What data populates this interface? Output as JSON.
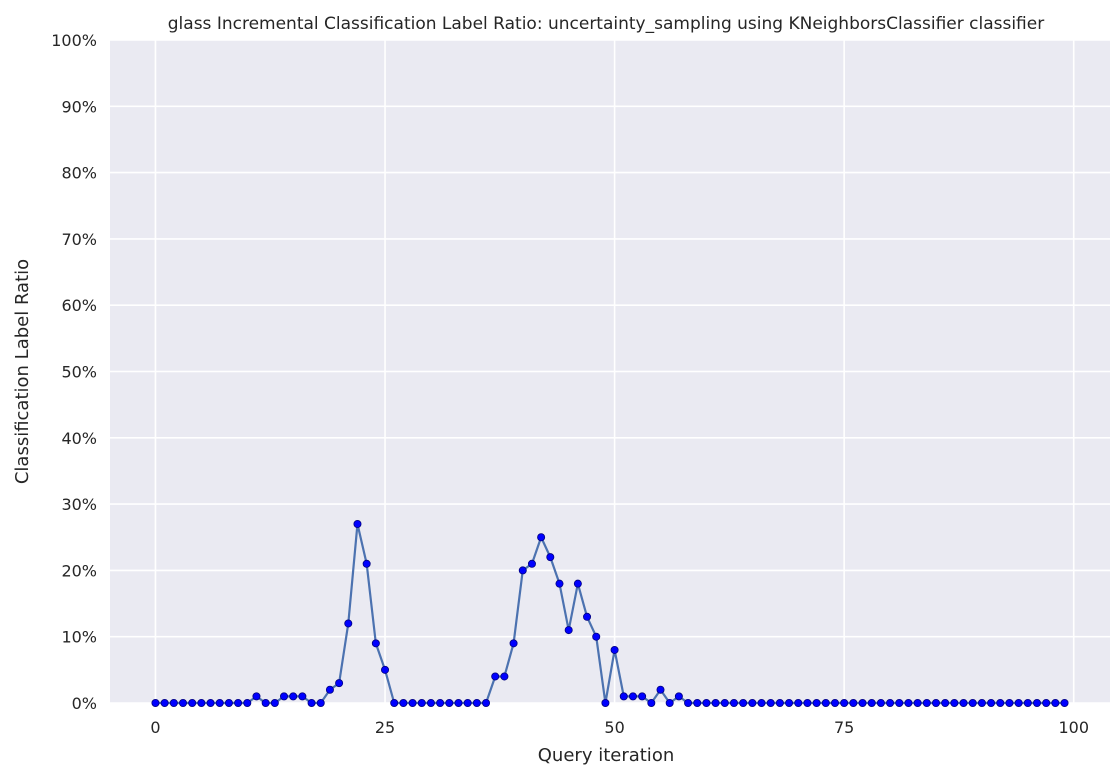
{
  "chart_data": {
    "type": "line",
    "title": "glass Incremental Classification Label Ratio: uncertainty_sampling using KNeighborsClassifier classifier",
    "xlabel": "Query iteration",
    "ylabel": "Classification Label Ratio",
    "xlim": [
      -4.95,
      103.95
    ],
    "ylim": [
      0,
      1
    ],
    "xticks": [
      0,
      25,
      50,
      75,
      100
    ],
    "xtick_labels": [
      "0",
      "25",
      "50",
      "75",
      "100"
    ],
    "yticks": [
      0,
      0.1,
      0.2,
      0.3,
      0.4,
      0.5,
      0.6,
      0.7,
      0.8,
      0.9,
      1.0
    ],
    "ytick_labels": [
      "0%",
      "10%",
      "20%",
      "30%",
      "40%",
      "50%",
      "60%",
      "70%",
      "80%",
      "90%",
      "100%"
    ],
    "grid": true,
    "colors": {
      "line": "#4c72b0",
      "marker": "#0000ff",
      "marker_edge": "#000080",
      "background": "#eaeaf2",
      "grid": "#ffffff"
    },
    "series": [
      {
        "x": [
          0,
          1,
          2,
          3,
          4,
          5,
          6,
          7,
          8,
          9,
          10,
          11,
          12,
          13,
          14,
          15,
          16,
          17,
          18,
          19,
          20,
          21,
          22,
          23,
          24,
          25,
          26,
          27,
          28,
          29,
          30,
          31,
          32,
          33,
          34,
          35,
          36,
          37,
          38,
          39,
          40,
          41,
          42,
          43,
          44,
          45,
          46,
          47,
          48,
          49,
          50,
          51,
          52,
          53,
          54,
          55,
          56,
          57,
          58,
          59,
          60,
          61,
          62,
          63,
          64,
          65,
          66,
          67,
          68,
          69,
          70,
          71,
          72,
          73,
          74,
          75,
          76,
          77,
          78,
          79,
          80,
          81,
          82,
          83,
          84,
          85,
          86,
          87,
          88,
          89,
          90,
          91,
          92,
          93,
          94,
          95,
          96,
          97,
          98,
          99
        ],
        "values": [
          0,
          0,
          0,
          0,
          0,
          0,
          0,
          0,
          0,
          0,
          0,
          0.01,
          0,
          0,
          0.01,
          0.01,
          0.01,
          0,
          0,
          0.02,
          0.03,
          0.12,
          0.27,
          0.21,
          0.09,
          0.05,
          0,
          0,
          0,
          0,
          0,
          0,
          0,
          0,
          0,
          0,
          0,
          0.04,
          0.04,
          0.09,
          0.2,
          0.21,
          0.25,
          0.22,
          0.18,
          0.11,
          0.18,
          0.13,
          0.1,
          0,
          0.08,
          0.01,
          0.01,
          0.01,
          0,
          0.02,
          0,
          0.01,
          0,
          0,
          0,
          0,
          0,
          0,
          0,
          0,
          0,
          0,
          0,
          0,
          0,
          0,
          0,
          0,
          0,
          0,
          0,
          0,
          0,
          0,
          0,
          0,
          0,
          0,
          0,
          0,
          0,
          0,
          0,
          0,
          0,
          0,
          0,
          0,
          0,
          0,
          0,
          0,
          0,
          0
        ]
      }
    ]
  }
}
